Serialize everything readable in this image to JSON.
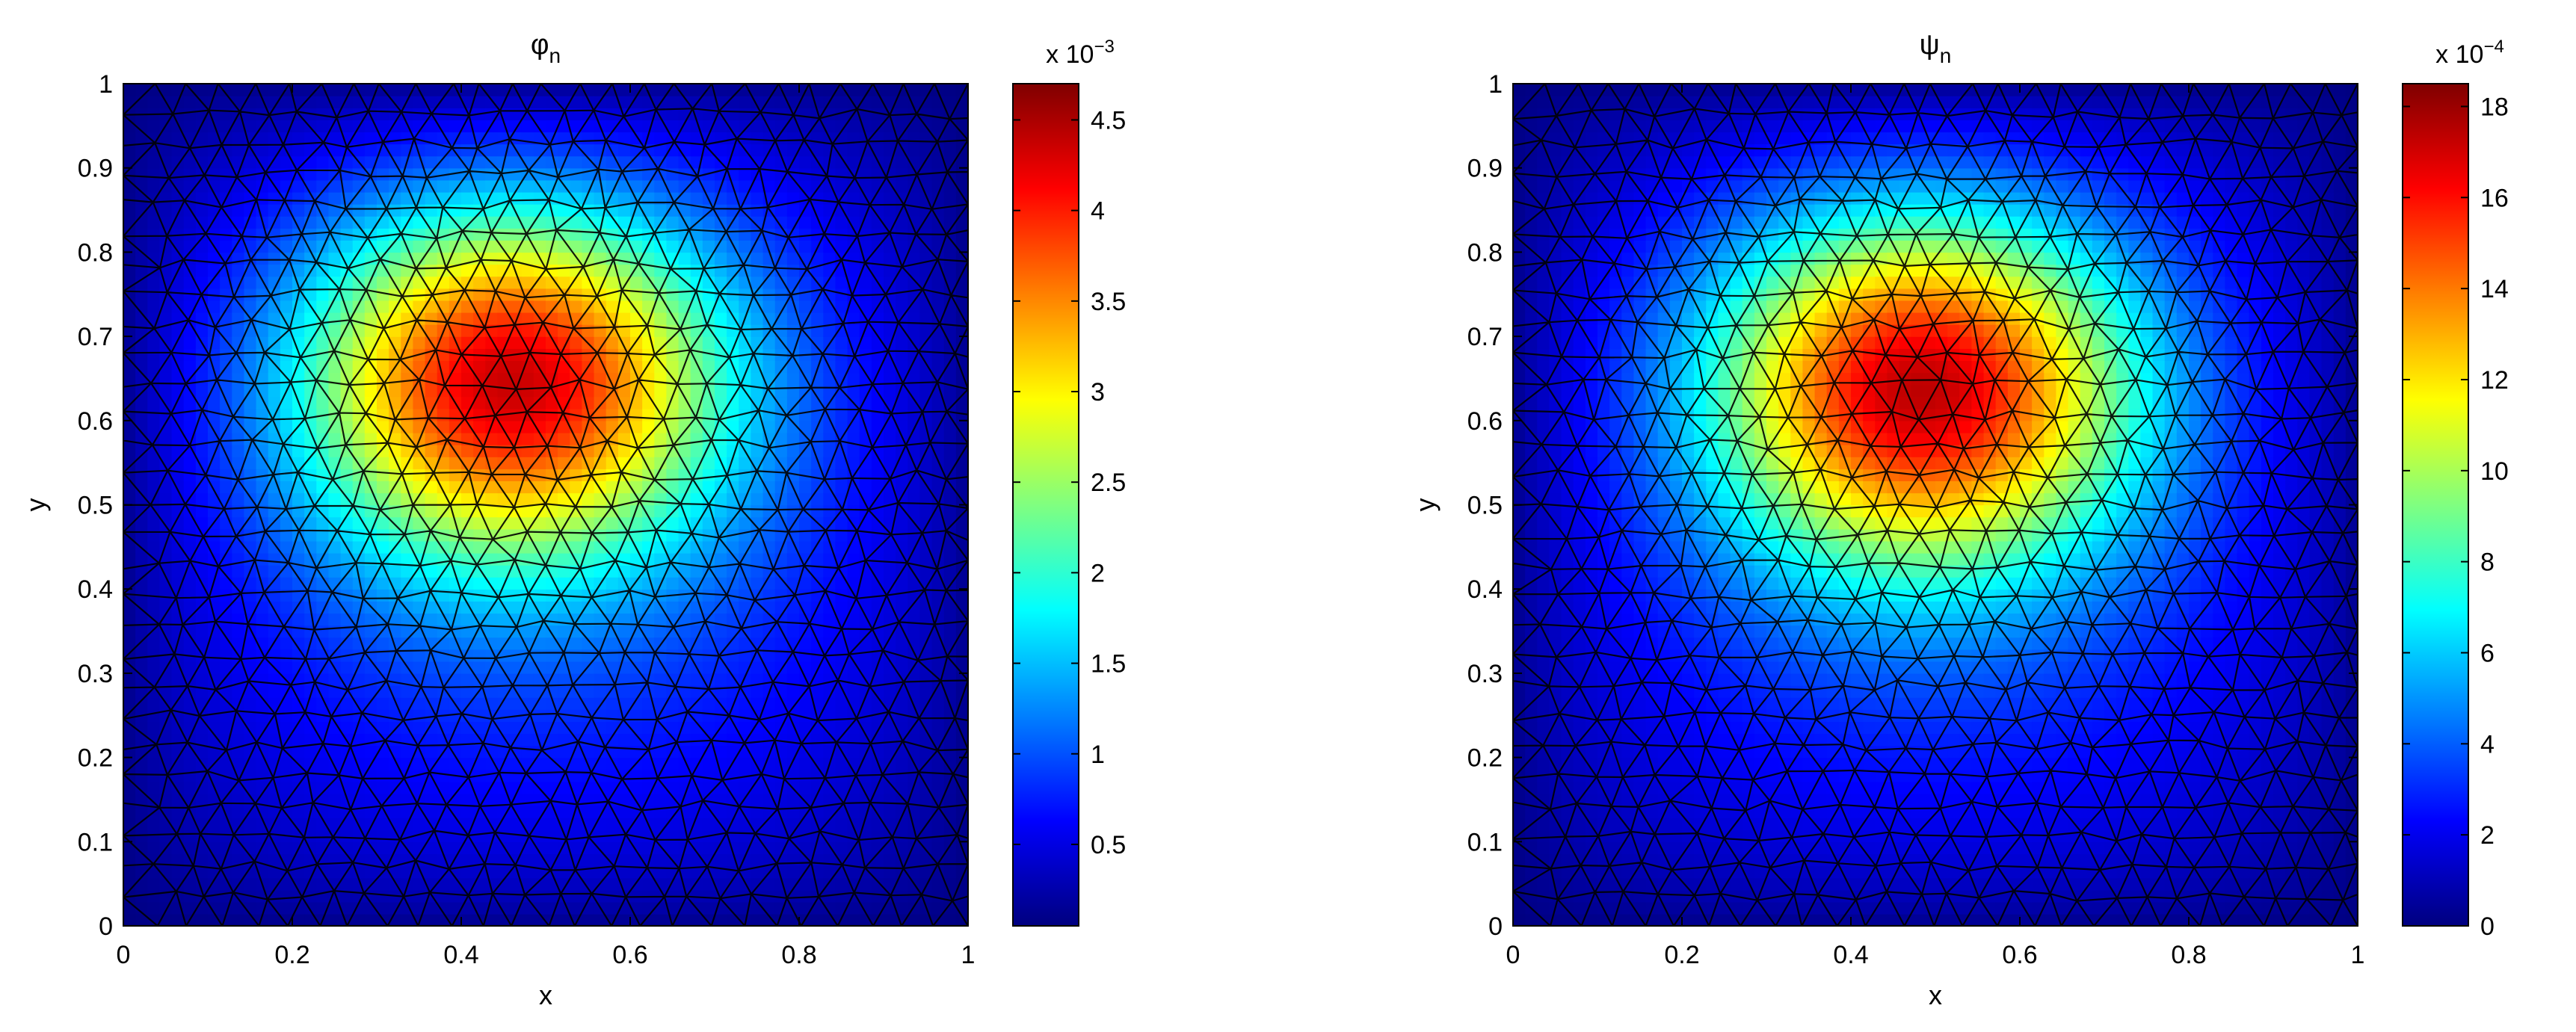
{
  "chart_data": [
    {
      "type": "heatmap",
      "title": "φ",
      "title_subscript": "n",
      "xlabel": "x",
      "ylabel": "y",
      "xlim": [
        0,
        1
      ],
      "ylim": [
        0,
        1
      ],
      "x_ticks": [
        "0",
        "0.2",
        "0.4",
        "0.6",
        "0.8",
        "1"
      ],
      "y_ticks": [
        "0",
        "0.1",
        "0.2",
        "0.3",
        "0.4",
        "0.5",
        "0.6",
        "0.7",
        "0.8",
        "0.9",
        "1"
      ],
      "field_peak": {
        "x": 0.45,
        "y": 0.67,
        "value": 4.7
      },
      "field_spread": {
        "sx": 0.19,
        "sy": 0.16
      },
      "colorbar": {
        "multiplier": "x 10",
        "exponent": "−3",
        "range": [
          0.05,
          4.7
        ],
        "ticks": [
          {
            "value": 0.5,
            "label": "0.5"
          },
          {
            "value": 1,
            "label": "1"
          },
          {
            "value": 1.5,
            "label": "1.5"
          },
          {
            "value": 2,
            "label": "2"
          },
          {
            "value": 2.5,
            "label": "2.5"
          },
          {
            "value": 3,
            "label": "3"
          },
          {
            "value": 3.5,
            "label": "3.5"
          },
          {
            "value": 4,
            "label": "4"
          },
          {
            "value": 4.5,
            "label": "4.5"
          }
        ]
      },
      "colormap": "jet",
      "mesh": "triangular",
      "grid": false
    },
    {
      "type": "heatmap",
      "title": "ψ",
      "title_subscript": "n",
      "xlabel": "x",
      "ylabel": "y",
      "xlim": [
        0,
        1
      ],
      "ylim": [
        0,
        1
      ],
      "x_ticks": [
        "0",
        "0.2",
        "0.4",
        "0.6",
        "0.8",
        "1"
      ],
      "y_ticks": [
        "0",
        "0.1",
        "0.2",
        "0.3",
        "0.4",
        "0.5",
        "0.6",
        "0.7",
        "0.8",
        "0.9",
        "1"
      ],
      "field_peak": {
        "x": 0.48,
        "y": 0.66,
        "value": 18.5
      },
      "field_spread": {
        "sx": 0.19,
        "sy": 0.16
      },
      "colorbar": {
        "multiplier": "x 10",
        "exponent": "−4",
        "range": [
          0,
          18.5
        ],
        "ticks": [
          {
            "value": 0,
            "label": "0"
          },
          {
            "value": 2,
            "label": "2"
          },
          {
            "value": 4,
            "label": "4"
          },
          {
            "value": 6,
            "label": "6"
          },
          {
            "value": 8,
            "label": "8"
          },
          {
            "value": 10,
            "label": "10"
          },
          {
            "value": 12,
            "label": "12"
          },
          {
            "value": 14,
            "label": "14"
          },
          {
            "value": 16,
            "label": "16"
          },
          {
            "value": 18,
            "label": "18"
          }
        ]
      },
      "colormap": "jet",
      "mesh": "triangular",
      "grid": false
    }
  ]
}
